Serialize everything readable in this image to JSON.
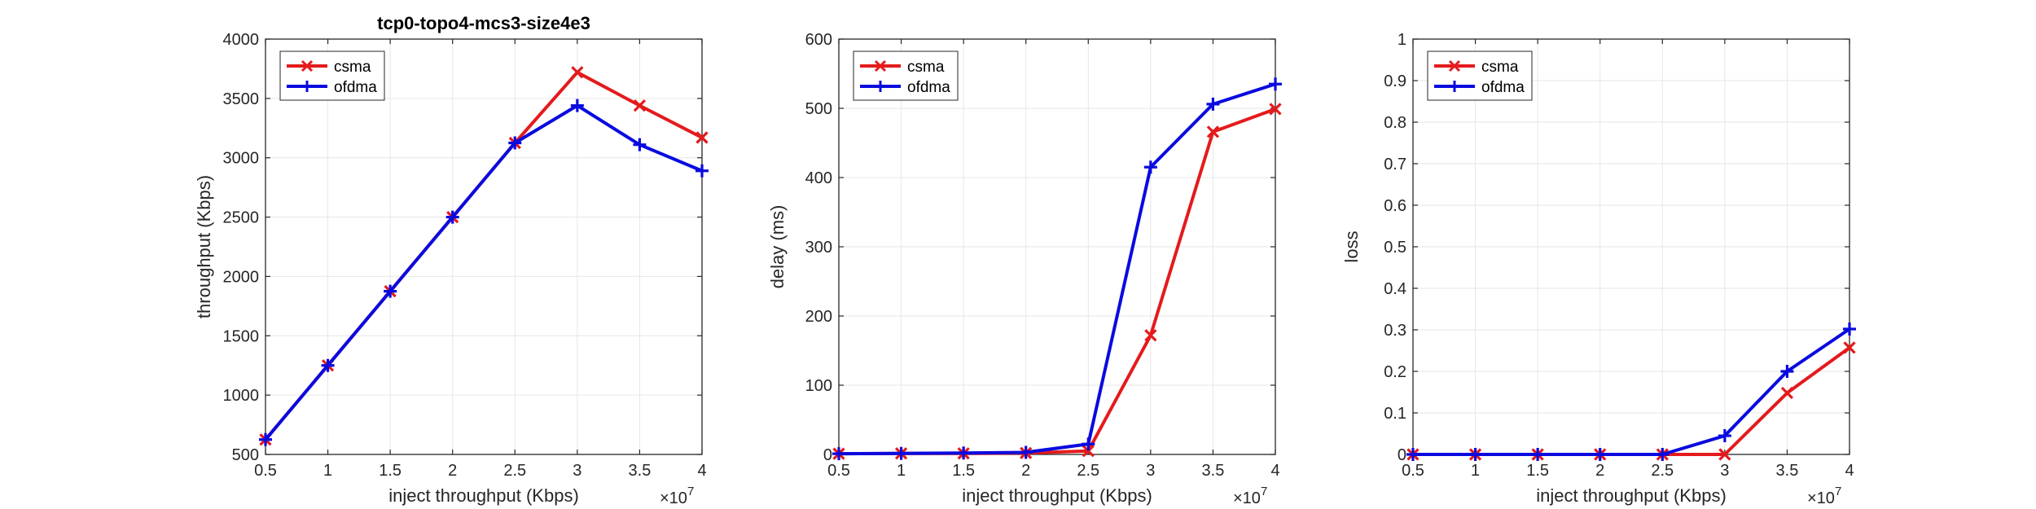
{
  "colors": {
    "csma": "#e41a1c",
    "ofdma": "#0a0adf",
    "grid": "#e6e6e6",
    "axis": "#262626"
  },
  "chart_data": [
    {
      "type": "line",
      "title": "tcp0-topo4-mcs3-size4e3",
      "xlabel": "inject throughput (Kbps)",
      "ylabel": "throughput (Kbps)",
      "x_multiplier": "×10",
      "x_multiplier_exp": "7",
      "xlim": [
        0.5,
        4
      ],
      "ylim": [
        500,
        4000
      ],
      "xticks": [
        "0.5",
        "1",
        "1.5",
        "2",
        "2.5",
        "3",
        "3.5",
        "4"
      ],
      "yticks": [
        "500",
        "1000",
        "1500",
        "2000",
        "2500",
        "3000",
        "3500",
        "4000"
      ],
      "x": [
        0.5,
        1,
        1.5,
        2,
        2.5,
        3,
        3.5,
        4
      ],
      "legend_position": "top-left",
      "grid": true,
      "series": [
        {
          "name": "csma",
          "marker": "x",
          "values": [
            625,
            1250,
            1875,
            2500,
            3125,
            3720,
            3440,
            3170
          ]
        },
        {
          "name": "ofdma",
          "marker": "+",
          "values": [
            625,
            1250,
            1875,
            2500,
            3125,
            3440,
            3110,
            2890
          ]
        }
      ]
    },
    {
      "type": "line",
      "title": "",
      "xlabel": "inject throughput (Kbps)",
      "ylabel": "delay (ms)",
      "x_multiplier": "×10",
      "x_multiplier_exp": "7",
      "xlim": [
        0.5,
        4
      ],
      "ylim": [
        0,
        600
      ],
      "xticks": [
        "0.5",
        "1",
        "1.5",
        "2",
        "2.5",
        "3",
        "3.5",
        "4"
      ],
      "yticks": [
        "0",
        "100",
        "200",
        "300",
        "400",
        "500",
        "600"
      ],
      "x": [
        0.5,
        1,
        1.5,
        2,
        2.5,
        3,
        3.5,
        4
      ],
      "legend_position": "top-left",
      "grid": true,
      "series": [
        {
          "name": "csma",
          "marker": "x",
          "values": [
            1,
            1.5,
            1.5,
            2,
            5,
            172,
            466,
            499
          ]
        },
        {
          "name": "ofdma",
          "marker": "+",
          "values": [
            1,
            1.5,
            2,
            3,
            15,
            415,
            506,
            535
          ]
        }
      ]
    },
    {
      "type": "line",
      "title": "",
      "xlabel": "inject throughput (Kbps)",
      "ylabel": "loss",
      "x_multiplier": "×10",
      "x_multiplier_exp": "7",
      "xlim": [
        0.5,
        4
      ],
      "ylim": [
        0,
        1
      ],
      "xticks": [
        "0.5",
        "1",
        "1.5",
        "2",
        "2.5",
        "3",
        "3.5",
        "4"
      ],
      "yticks": [
        "0",
        "0.1",
        "0.2",
        "0.3",
        "0.4",
        "0.5",
        "0.6",
        "0.7",
        "0.8",
        "0.9",
        "1"
      ],
      "x": [
        0.5,
        1,
        1.5,
        2,
        2.5,
        3,
        3.5,
        4
      ],
      "legend_position": "top-left",
      "grid": true,
      "series": [
        {
          "name": "csma",
          "marker": "x",
          "values": [
            0,
            0,
            0,
            0,
            0,
            0,
            0.148,
            0.257
          ]
        },
        {
          "name": "ofdma",
          "marker": "+",
          "values": [
            0,
            0,
            0,
            0,
            0,
            0.045,
            0.2,
            0.302
          ]
        }
      ]
    }
  ]
}
